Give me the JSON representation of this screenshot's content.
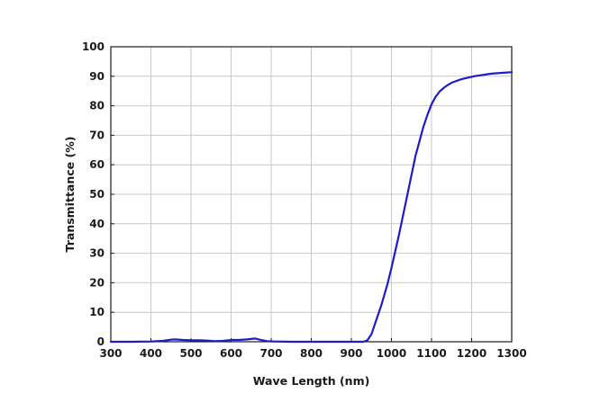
{
  "chart_data": {
    "type": "line",
    "title": "",
    "xlabel": "Wave Length (nm)",
    "ylabel": "Transmittance (%)",
    "xlim": [
      300,
      1300
    ],
    "ylim": [
      0,
      100
    ],
    "xticks": [
      "300",
      "400",
      "500",
      "600",
      "700",
      "800",
      "900",
      "1000",
      "1100",
      "1200",
      "1300"
    ],
    "yticks": [
      "0",
      "10",
      "20",
      "30",
      "40",
      "50",
      "60",
      "70",
      "80",
      "90",
      "100"
    ],
    "grid": true,
    "legend": "none",
    "series": [
      {
        "color": "#1c1cc8",
        "x": [
          300,
          350,
          400,
          430,
          450,
          460,
          480,
          500,
          520,
          540,
          560,
          580,
          600,
          620,
          640,
          660,
          675,
          690,
          710,
          750,
          800,
          850,
          900,
          930,
          940,
          950,
          960,
          975,
          990,
          1000,
          1010,
          1020,
          1030,
          1040,
          1050,
          1060,
          1070,
          1080,
          1090,
          1100,
          1110,
          1120,
          1130,
          1140,
          1150,
          1160,
          1170,
          1180,
          1190,
          1200,
          1210,
          1220,
          1230,
          1240,
          1250,
          1260,
          1270,
          1280,
          1290,
          1300
        ],
        "y": [
          0,
          0,
          0.1,
          0.3,
          0.7,
          0.8,
          0.6,
          0.5,
          0.5,
          0.4,
          0.2,
          0.3,
          0.6,
          0.6,
          0.8,
          1.1,
          0.6,
          0.2,
          0.1,
          0.0,
          0.0,
          0.0,
          0.0,
          0.0,
          0.5,
          2.5,
          6.5,
          12.5,
          19.5,
          25.0,
          31.0,
          37.0,
          43.5,
          50.0,
          56.5,
          63.0,
          68.0,
          73.0,
          77.0,
          80.5,
          83.0,
          84.8,
          86.0,
          87.0,
          87.8,
          88.3,
          88.8,
          89.2,
          89.5,
          89.8,
          90.1,
          90.3,
          90.5,
          90.7,
          90.9,
          91.0,
          91.1,
          91.2,
          91.3,
          91.4
        ]
      }
    ]
  }
}
